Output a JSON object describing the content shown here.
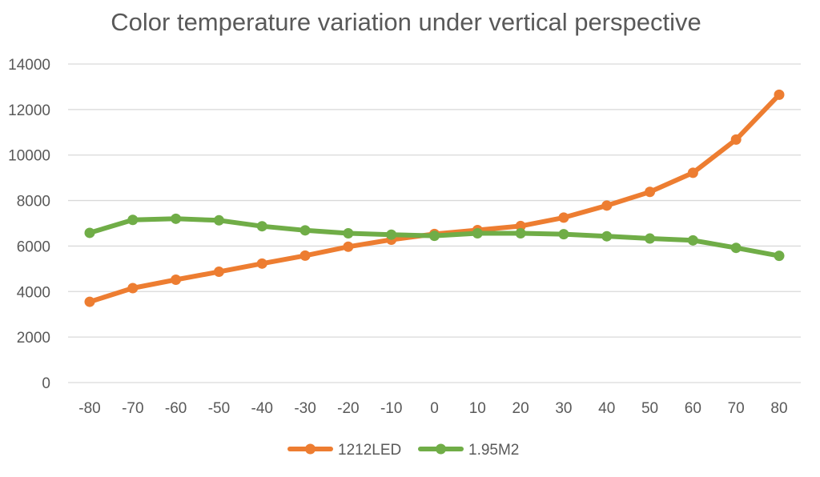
{
  "chart_data": {
    "type": "line",
    "title": "Color temperature variation under vertical perspective",
    "xlabel": "",
    "ylabel": "",
    "x": [
      -80,
      -70,
      -60,
      -50,
      -40,
      -30,
      -20,
      -10,
      0,
      10,
      20,
      30,
      40,
      50,
      60,
      70,
      80
    ],
    "ylim": [
      0,
      14000
    ],
    "yticks": [
      0,
      2000,
      4000,
      6000,
      8000,
      10000,
      12000,
      14000
    ],
    "grid": true,
    "legend_position": "bottom",
    "series": [
      {
        "name": "1212LED",
        "color": "#ed7d31",
        "values": [
          3550,
          4150,
          4520,
          4870,
          5230,
          5580,
          5970,
          6280,
          6530,
          6700,
          6880,
          7250,
          7780,
          8380,
          9220,
          10680,
          12650
        ]
      },
      {
        "name": "1.95M2",
        "color": "#70ad47",
        "values": [
          6580,
          7150,
          7200,
          7130,
          6870,
          6690,
          6560,
          6500,
          6450,
          6560,
          6560,
          6520,
          6430,
          6330,
          6250,
          5920,
          5570
        ]
      }
    ]
  }
}
